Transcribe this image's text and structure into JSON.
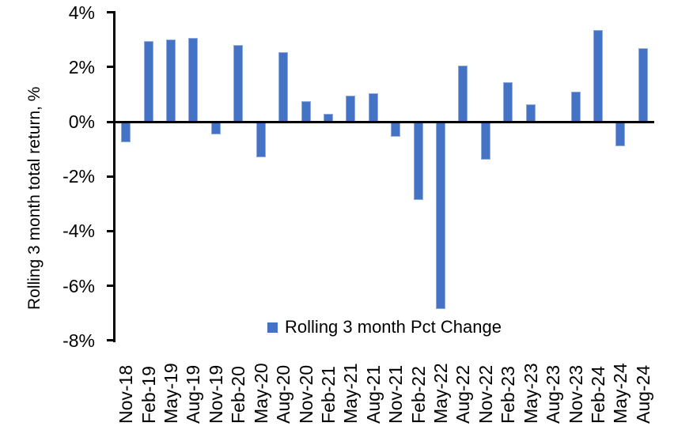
{
  "chart_data": {
    "type": "bar",
    "title": "",
    "xlabel": "",
    "ylabel": "Rolling 3 month total return, %",
    "ylim": [
      -8,
      4
    ],
    "grid": false,
    "legend_position": "bottom-inside",
    "y_ticks": [
      4,
      2,
      0,
      -2,
      -4,
      -6,
      -8
    ],
    "y_tick_labels": [
      "4%",
      "2%",
      "0%",
      "-2%",
      "-4%",
      "-6%",
      "-8%"
    ],
    "categories": [
      "Nov-18",
      "Feb-19",
      "May-19",
      "Aug-19",
      "Nov-19",
      "Feb-20",
      "May-20",
      "Aug-20",
      "Nov-20",
      "Feb-21",
      "May-21",
      "Aug-21",
      "Nov-21",
      "Feb-22",
      "May-22",
      "Aug-22",
      "Nov-22",
      "Feb-23",
      "May-23",
      "Aug-23",
      "Nov-23",
      "Feb-24",
      "May-24",
      "Aug-24"
    ],
    "series": [
      {
        "name": "Rolling 3 month Pct Change",
        "values": [
          -0.75,
          2.95,
          3.0,
          3.05,
          -0.45,
          2.8,
          -1.3,
          2.55,
          0.75,
          0.3,
          0.95,
          1.05,
          -0.55,
          -2.85,
          -6.85,
          2.05,
          -1.4,
          1.45,
          0.65,
          0.0,
          1.1,
          3.35,
          -0.9,
          2.7
        ]
      }
    ],
    "colors": {
      "bar_fill": "#4472C4",
      "bar_border": "#8FAADC",
      "axis": "#000000",
      "text": "#000000"
    }
  }
}
